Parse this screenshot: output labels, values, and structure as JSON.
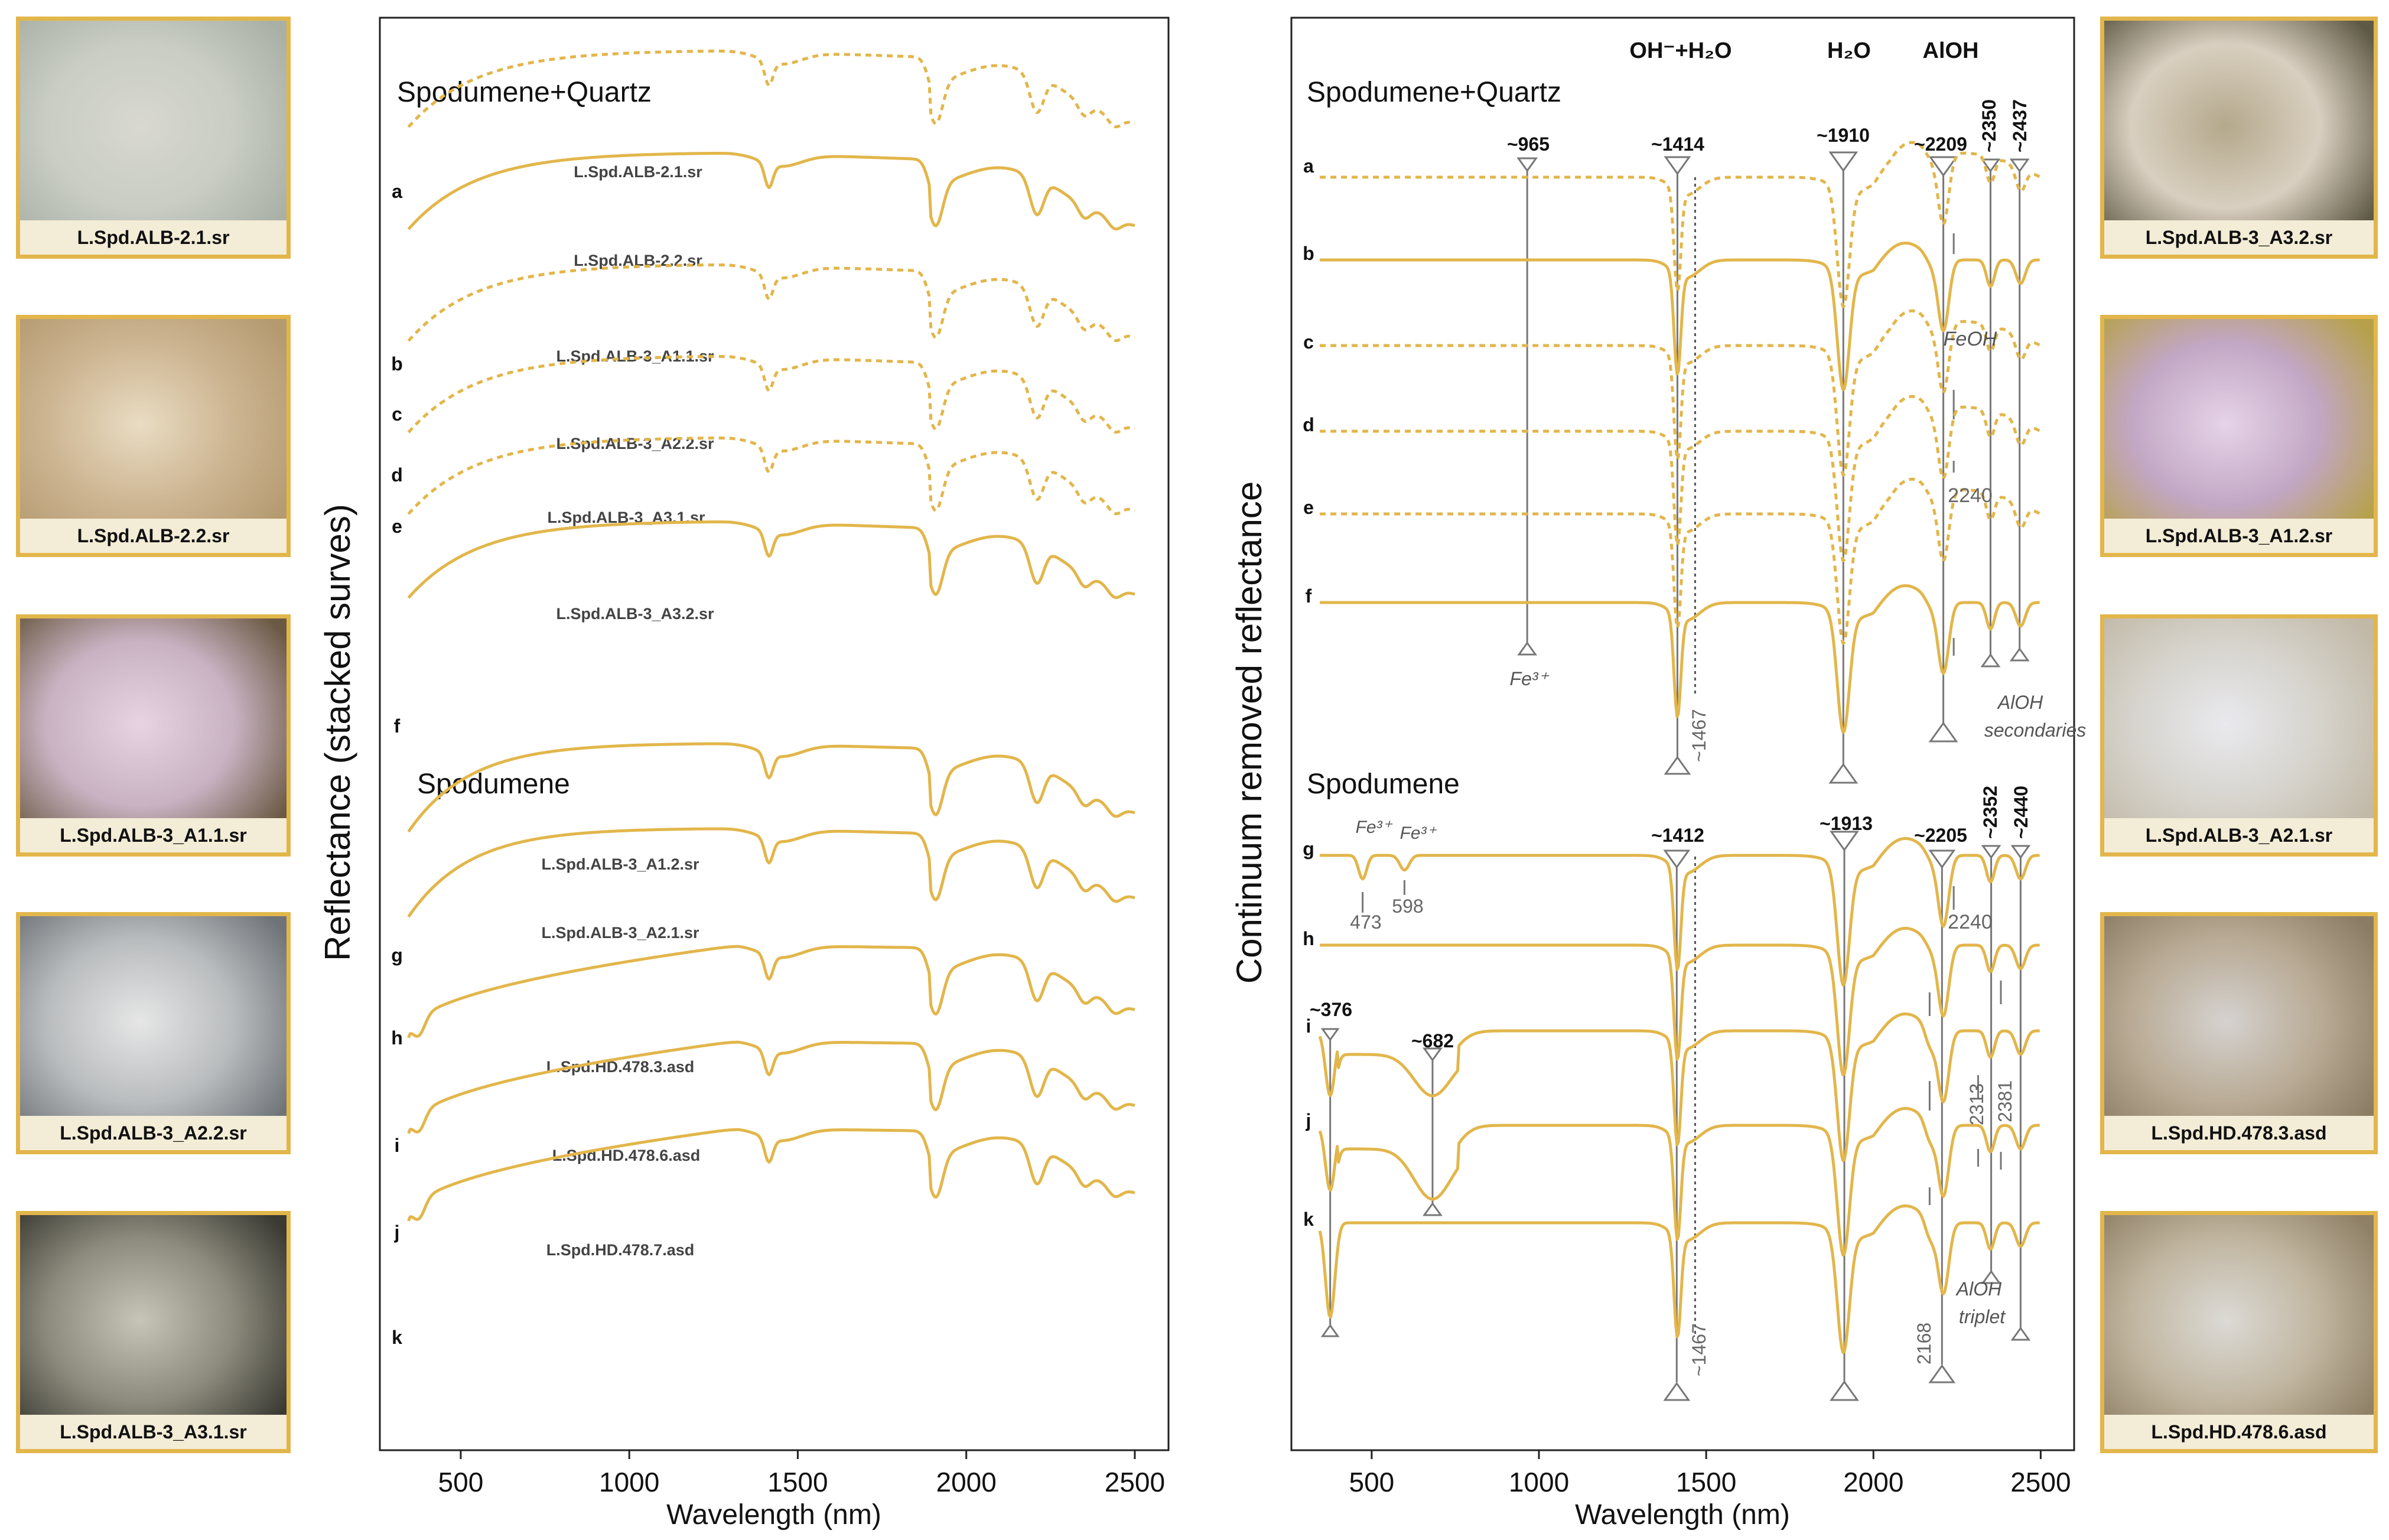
{
  "photos_left": [
    {
      "label": "L.Spd.ALB-2.1.sr",
      "colors": [
        "#d8d8d0",
        "#c9cdc4",
        "#a9b0a6"
      ]
    },
    {
      "label": "L.Spd.ALB-2.2.sr",
      "colors": [
        "#e9dcc3",
        "#cdb592",
        "#b39a70"
      ]
    },
    {
      "label": "L.Spd.ALB-3_A1.1.sr",
      "colors": [
        "#e7d3e1",
        "#c9b3c3",
        "#6a5a44"
      ]
    },
    {
      "label": "L.Spd.ALB-3_A2.2.sr",
      "colors": [
        "#e6e6e6",
        "#b9bcbe",
        "#6f7478"
      ]
    },
    {
      "label": "L.Spd.ALB-3_A3.1.sr",
      "colors": [
        "#c7c5b8",
        "#8d8b7d",
        "#3b3a33"
      ]
    }
  ],
  "photos_right": [
    {
      "label": "L.Spd.ALB-3_A3.2.sr",
      "colors": [
        "#b4a98c",
        "#d9cfc0",
        "#5f5a45"
      ]
    },
    {
      "label": "L.Spd.ALB-3_A1.2.sr",
      "colors": [
        "#e6d3e8",
        "#c2a7c4",
        "#b6a14a"
      ]
    },
    {
      "label": "L.Spd.ALB-3_A2.1.sr",
      "colors": [
        "#e9e9ee",
        "#d6d3cc",
        "#c1b8a6"
      ]
    },
    {
      "label": "L.Spd.HD.478.3.asd",
      "colors": [
        "#d5d2d0",
        "#b9ab95",
        "#8b7c64"
      ]
    },
    {
      "label": "L.Spd.HD.478.6.asd",
      "colors": [
        "#dcdad6",
        "#c0b59f",
        "#8f8066"
      ]
    }
  ],
  "chart_data": [
    {
      "type": "line",
      "ylabel": "Reflectance (stacked surves)",
      "xlabel": "Wavelength (nm)",
      "xlim": [
        260,
        2600
      ],
      "xticks": [
        500,
        1000,
        1500,
        2000,
        2500
      ],
      "groups": [
        {
          "title": "Spodumene+Quartz"
        },
        {
          "title": "Spodumene"
        }
      ],
      "series": [
        {
          "letter": "a",
          "name": "L.Spd.ALB-2.1.sr",
          "dashed": true,
          "type": "spq"
        },
        {
          "letter": "b",
          "name": "L.Spd.ALB-2.2.sr",
          "dashed": false,
          "type": "spq"
        },
        {
          "letter": "c",
          "name": "L.Spd.ALB-3_A1.1.sr",
          "dashed": true,
          "type": "spq"
        },
        {
          "letter": "d",
          "name": "L.Spd.ALB-3_A2.2.sr",
          "dashed": true,
          "type": "spq"
        },
        {
          "letter": "e",
          "name": "L.Spd.ALB-3_A3.1.sr",
          "dashed": true,
          "type": "spq"
        },
        {
          "letter": "f",
          "name": "L.Spd.ALB-3_A3.2.sr",
          "dashed": false,
          "type": "spq"
        },
        {
          "letter": "g",
          "name": "L.Spd.ALB-3_A1.2.sr",
          "dashed": false,
          "type": "spd"
        },
        {
          "letter": "h",
          "name": "L.Spd.ALB-3_A2.1.sr",
          "dashed": false,
          "type": "spd"
        },
        {
          "letter": "i",
          "name": "L.Spd.HD.478.3.asd",
          "dashed": false,
          "type": "asd"
        },
        {
          "letter": "j",
          "name": "L.Spd.HD.478.6.asd",
          "dashed": false,
          "type": "asd"
        },
        {
          "letter": "k",
          "name": "L.Spd.HD.478.7.asd",
          "dashed": false,
          "type": "asd"
        }
      ]
    },
    {
      "type": "line",
      "ylabel": "Continuum removed reflectance",
      "xlabel": "Wavelength (nm)",
      "xlim": [
        260,
        2600
      ],
      "xticks": [
        500,
        1000,
        1500,
        2000,
        2500
      ],
      "groups": [
        {
          "title": "Spodumene+Quartz"
        },
        {
          "title": "Spodumene"
        }
      ],
      "letters": [
        "a",
        "b",
        "c",
        "d",
        "e",
        "f",
        "g",
        "h",
        "i",
        "j",
        "k"
      ],
      "header_labels": [
        "OH⁻+H₂O",
        "H₂O",
        "AlOH"
      ],
      "feature_labels_top": [
        "~965",
        "~1414",
        "~1910",
        "~2209",
        "~2350",
        "~2437"
      ],
      "feature_labels_bottom": [
        "~376",
        "~682",
        "~1412",
        "~1913",
        "~2205",
        "~2352",
        "~2440"
      ],
      "minor_labels": [
        "Fe³⁺",
        "FeOH",
        "2240",
        "~1467",
        "AlOH",
        "secondaries",
        "Fe³⁺",
        "Fe³⁺",
        "473",
        "598",
        "2240",
        "2313",
        "2381",
        "~1467",
        "2168",
        "AlOH",
        "triplet"
      ]
    }
  ]
}
